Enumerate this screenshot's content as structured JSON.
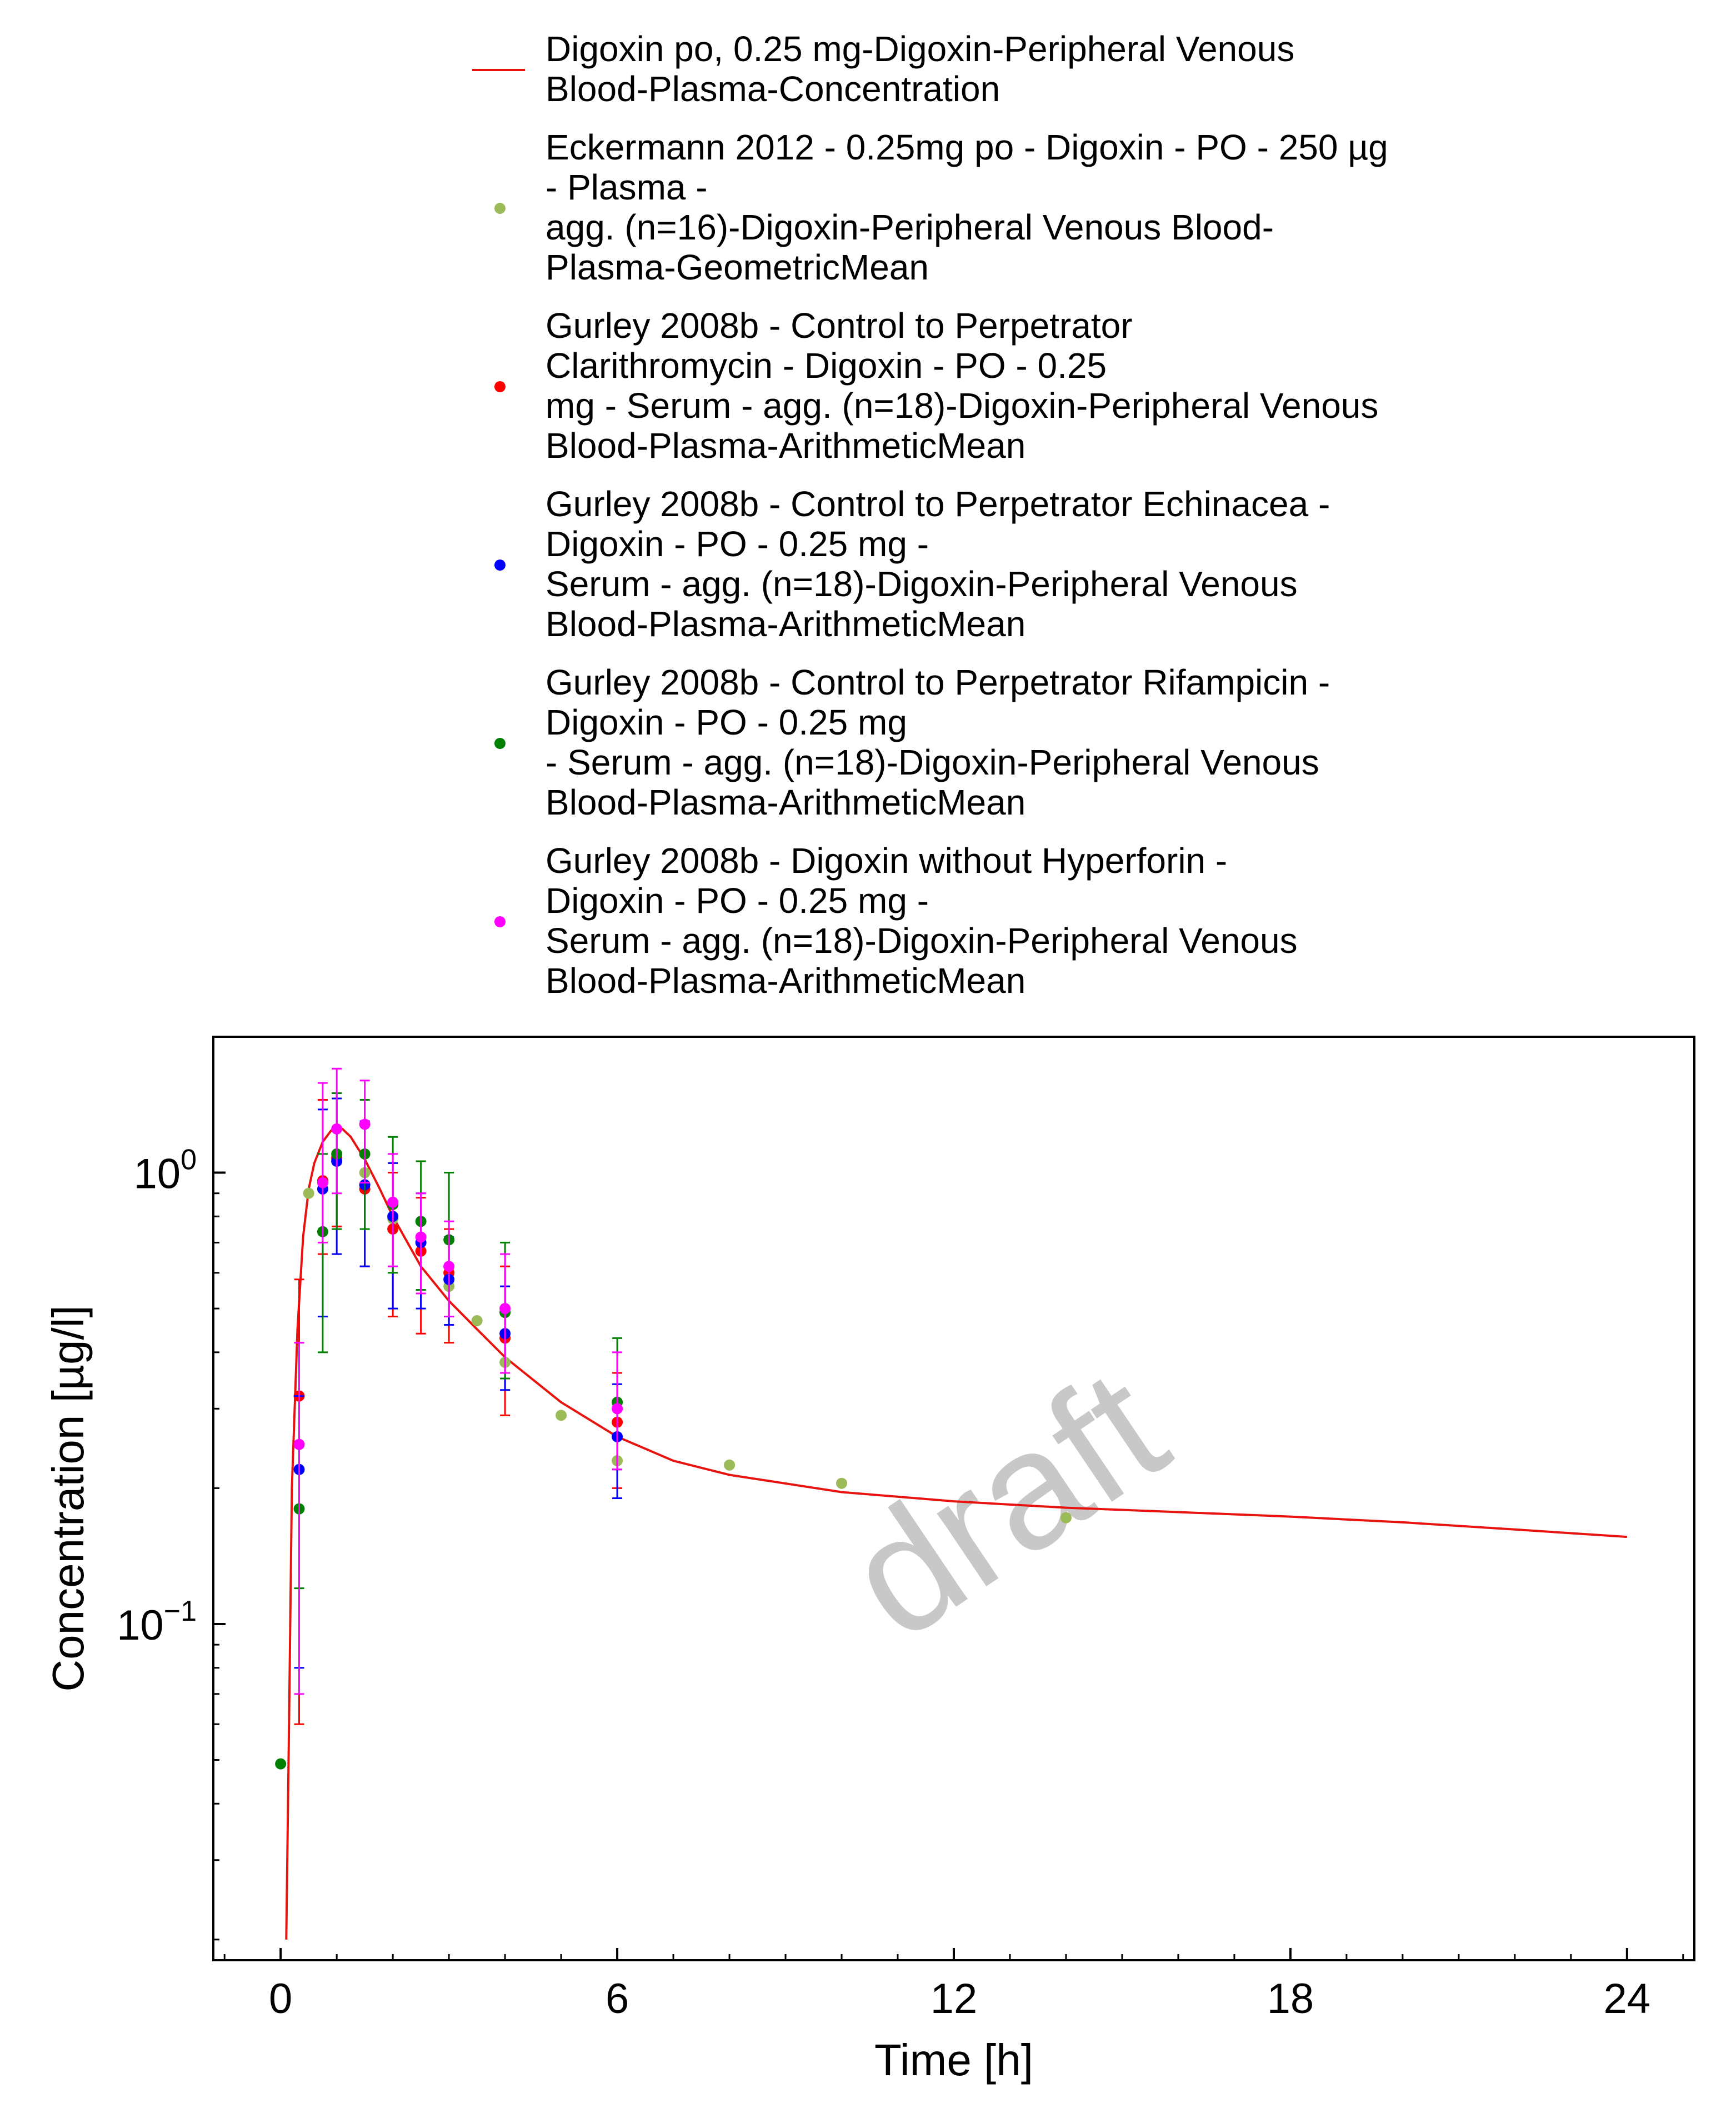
{
  "chart_data": {
    "type": "scatter",
    "title": "",
    "xlabel": "Time [h]",
    "ylabel": "Concentration [µg/l]",
    "xlim": [
      -1.2,
      25.2
    ],
    "ylim": [
      0.018,
      2.0
    ],
    "yscale": "log",
    "x_ticks": [
      0,
      6,
      12,
      18,
      24
    ],
    "x_tick_labels": [
      "0",
      "6",
      "12",
      "18",
      "24"
    ],
    "y_ticks": [
      {
        "value": 1.0,
        "base": "10",
        "exp": "0"
      },
      {
        "value": 0.1,
        "base": "10",
        "exp": "−1"
      }
    ],
    "grid": false,
    "legend_position": "top",
    "watermark": "draft",
    "series": [
      {
        "name": "Digoxin po, 0.25 mg-Digoxin-Peripheral Venous Blood-Plasma-Concentration",
        "legend_lines": [
          "Digoxin po, 0.25 mg-Digoxin-Peripheral Venous",
          "Blood-Plasma-Concentration"
        ],
        "kind": "line",
        "color": "#e8120f",
        "x": [
          0.1,
          0.15,
          0.2,
          0.3,
          0.4,
          0.5,
          0.6,
          0.75,
          0.9,
          1.0,
          1.1,
          1.25,
          1.5,
          1.75,
          2.0,
          2.5,
          3.0,
          3.5,
          4.0,
          5.0,
          6.0,
          7.0,
          8.0,
          10.0,
          12.0,
          14.0,
          16.0,
          18.0,
          20.0,
          22.0,
          24.0
        ],
        "y": [
          0.02,
          0.06,
          0.2,
          0.45,
          0.72,
          0.92,
          1.05,
          1.17,
          1.24,
          1.26,
          1.25,
          1.2,
          1.07,
          0.93,
          0.8,
          0.62,
          0.52,
          0.45,
          0.39,
          0.31,
          0.26,
          0.23,
          0.214,
          0.196,
          0.187,
          0.181,
          0.177,
          0.173,
          0.168,
          0.162,
          0.156
        ]
      },
      {
        "name": "Eckermann 2012 - 0.25mg po - Digoxin - PO - 250 µg - Plasma - agg. (n=16)-Digoxin-Peripheral Venous Blood-Plasma-GeometricMean",
        "legend_lines": [
          "Eckermann 2012 - 0.25mg po - Digoxin - PO - 250 µg",
          "- Plasma -",
          "agg. (n=16)-Digoxin-Peripheral Venous Blood-",
          "Plasma-GeometricMean"
        ],
        "kind": "scatter",
        "color": "#9bbb59",
        "x": [
          0.5,
          1.0,
          1.5,
          2.0,
          3.0,
          3.5,
          4.0,
          5.0,
          6.0,
          8.0,
          10.0,
          14.0
        ],
        "y": [
          0.9,
          1.07,
          1.0,
          0.79,
          0.56,
          0.47,
          0.38,
          0.29,
          0.23,
          0.225,
          0.205,
          0.172
        ]
      },
      {
        "name": "Gurley 2008b - Control to Perpetrator Clarithromycin - Digoxin - PO - 0.25 mg - Serum - agg. (n=18)-Digoxin-Peripheral Venous Blood-Plasma-ArithmeticMean",
        "legend_lines": [
          "Gurley 2008b - Control to Perpetrator",
          "Clarithromycin - Digoxin - PO - 0.25",
          "mg - Serum - agg. (n=18)-Digoxin-Peripheral Venous",
          "Blood-Plasma-ArithmeticMean"
        ],
        "kind": "scatter",
        "color": "#ff0000",
        "x": [
          0.33,
          0.75,
          1.0,
          1.5,
          2.0,
          2.5,
          3.0,
          4.0,
          6.0
        ],
        "y": [
          0.32,
          0.96,
          1.08,
          0.92,
          0.75,
          0.67,
          0.6,
          0.43,
          0.28
        ],
        "err_low": [
          0.06,
          0.66,
          0.76,
          0.62,
          0.48,
          0.44,
          0.42,
          0.29,
          0.2
        ],
        "err_high": [
          0.58,
          1.45,
          1.5,
          1.28,
          1.0,
          0.88,
          0.75,
          0.62,
          0.36
        ]
      },
      {
        "name": "Gurley 2008b - Control to Perpetrator Echinacea - Digoxin - PO - 0.25 mg - Serum - agg. (n=18)-Digoxin-Peripheral Venous Blood-Plasma-ArithmeticMean",
        "legend_lines": [
          "Gurley 2008b - Control to Perpetrator Echinacea -",
          "Digoxin - PO - 0.25 mg -",
          "Serum - agg. (n=18)-Digoxin-Peripheral Venous",
          "Blood-Plasma-ArithmeticMean"
        ],
        "kind": "scatter",
        "color": "#0000ff",
        "x": [
          0.33,
          0.75,
          1.0,
          1.5,
          2.0,
          2.5,
          3.0,
          4.0,
          6.0
        ],
        "y": [
          0.22,
          0.92,
          1.06,
          0.94,
          0.8,
          0.7,
          0.58,
          0.44,
          0.26
        ],
        "err_low": [
          0.08,
          0.48,
          0.66,
          0.62,
          0.5,
          0.5,
          0.46,
          0.33,
          0.19
        ],
        "err_high": [
          0.32,
          1.38,
          1.46,
          1.3,
          1.05,
          0.9,
          0.72,
          0.56,
          0.34
        ]
      },
      {
        "name": "Gurley 2008b - Control to Perpetrator Rifampicin - Digoxin - PO - 0.25 mg - Serum - agg. (n=18)-Digoxin-Peripheral Venous Blood-Plasma-ArithmeticMean",
        "legend_lines": [
          "Gurley 2008b - Control to Perpetrator Rifampicin -",
          "Digoxin - PO - 0.25 mg",
          "- Serum - agg. (n=18)-Digoxin-Peripheral Venous",
          "Blood-Plasma-ArithmeticMean"
        ],
        "kind": "scatter",
        "color": "#008000",
        "x": [
          0.0,
          0.33,
          0.75,
          1.0,
          1.5,
          2.0,
          2.5,
          3.0,
          4.0,
          6.0
        ],
        "y": [
          0.049,
          0.18,
          0.74,
          1.1,
          1.1,
          0.85,
          0.78,
          0.71,
          0.49,
          0.31
        ],
        "err_low": [
          null,
          0.12,
          0.4,
          0.75,
          0.75,
          0.6,
          0.55,
          0.48,
          0.35,
          0.22
        ],
        "err_high": [
          null,
          0.25,
          1.1,
          1.5,
          1.45,
          1.2,
          1.06,
          1.0,
          0.7,
          0.43
        ]
      },
      {
        "name": "Gurley 2008b - Digoxin without Hyperforin - Digoxin - PO - 0.25 mg - Serum - agg. (n=18)-Digoxin-Peripheral Venous Blood-Plasma-ArithmeticMean",
        "legend_lines": [
          "Gurley 2008b - Digoxin without Hyperforin -",
          "Digoxin - PO - 0.25 mg -",
          "Serum - agg. (n=18)-Digoxin-Peripheral Venous",
          "Blood-Plasma-ArithmeticMean"
        ],
        "kind": "scatter",
        "color": "#ff00ff",
        "x": [
          0.33,
          0.75,
          1.0,
          1.5,
          2.0,
          2.5,
          3.0,
          4.0,
          6.0
        ],
        "y": [
          0.25,
          0.95,
          1.25,
          1.28,
          0.86,
          0.72,
          0.62,
          0.5,
          0.3
        ],
        "err_low": [
          0.07,
          0.7,
          0.9,
          0.95,
          0.62,
          0.54,
          0.48,
          0.36,
          0.22
        ],
        "err_high": [
          0.42,
          1.58,
          1.7,
          1.6,
          1.1,
          0.9,
          0.78,
          0.66,
          0.4
        ]
      }
    ]
  }
}
